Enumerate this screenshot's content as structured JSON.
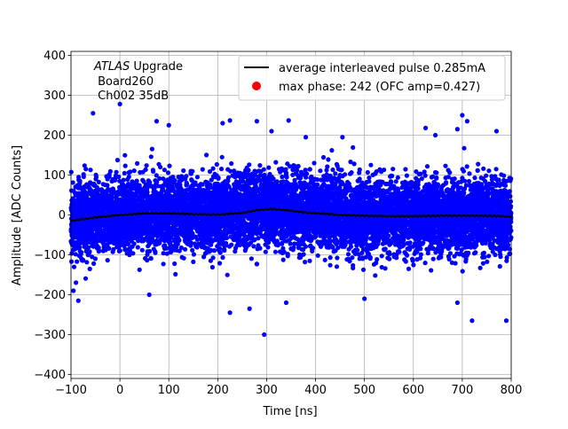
{
  "chart_data": {
    "type": "scatter",
    "xlabel": "Time [ns]",
    "ylabel": "Amplitude [ADC Counts]",
    "xlim": [
      -100,
      800
    ],
    "ylim": [
      -410,
      410
    ],
    "grid": true,
    "x_ticks": [
      -100,
      0,
      100,
      200,
      300,
      400,
      500,
      600,
      700,
      800
    ],
    "x_tick_labels": [
      "−100",
      "0",
      "100",
      "200",
      "300",
      "400",
      "500",
      "600",
      "700",
      "800"
    ],
    "y_ticks": [
      -400,
      -300,
      -200,
      -100,
      0,
      100,
      200,
      300,
      400
    ],
    "y_tick_labels": [
      "−400",
      "−300",
      "−200",
      "−100",
      "0",
      "100",
      "200",
      "300",
      "400"
    ],
    "annotation": {
      "italic": "ATLAS",
      "rest": " Upgrade",
      "line2": " Board260",
      "line3": " Ch002 35dB"
    },
    "legend_position": "top-right",
    "colors": {
      "samples": "#0000ff",
      "pulse": "#000000",
      "max_phase": "#ff0000"
    },
    "series": [
      {
        "name": "average interleaved pulse 0.285mA",
        "kind": "line",
        "x": [
          -100,
          -50,
          0,
          50,
          100,
          150,
          200,
          250,
          280,
          310,
          340,
          380,
          420,
          450,
          500,
          550,
          600,
          650,
          700,
          750,
          800
        ],
        "y": [
          -15,
          -6,
          0,
          4,
          4,
          2,
          1,
          5,
          12,
          15,
          12,
          6,
          3,
          0,
          -2,
          -3,
          -3,
          -2,
          -2,
          -2,
          -4
        ]
      },
      {
        "name": "max phase: 242 (OFC amp=0.427)",
        "kind": "marker",
        "x": [],
        "y": []
      },
      {
        "kind": "scatter",
        "sigma": 45,
        "n_points": 9000,
        "x_range": [
          -100,
          800
        ],
        "outliers": {
          "x": [
            -55,
            0,
            75,
            100,
            210,
            225,
            280,
            310,
            345,
            380,
            455,
            625,
            645,
            690,
            700,
            710,
            770,
            -85,
            60,
            225,
            265,
            295,
            340,
            500,
            690,
            720,
            790,
            -95
          ],
          "y": [
            255,
            278,
            235,
            225,
            230,
            237,
            235,
            210,
            237,
            195,
            195,
            218,
            200,
            215,
            250,
            235,
            210,
            -215,
            -200,
            -245,
            -235,
            -300,
            -220,
            -210,
            -220,
            -265,
            -265,
            -190
          ]
        }
      }
    ]
  }
}
